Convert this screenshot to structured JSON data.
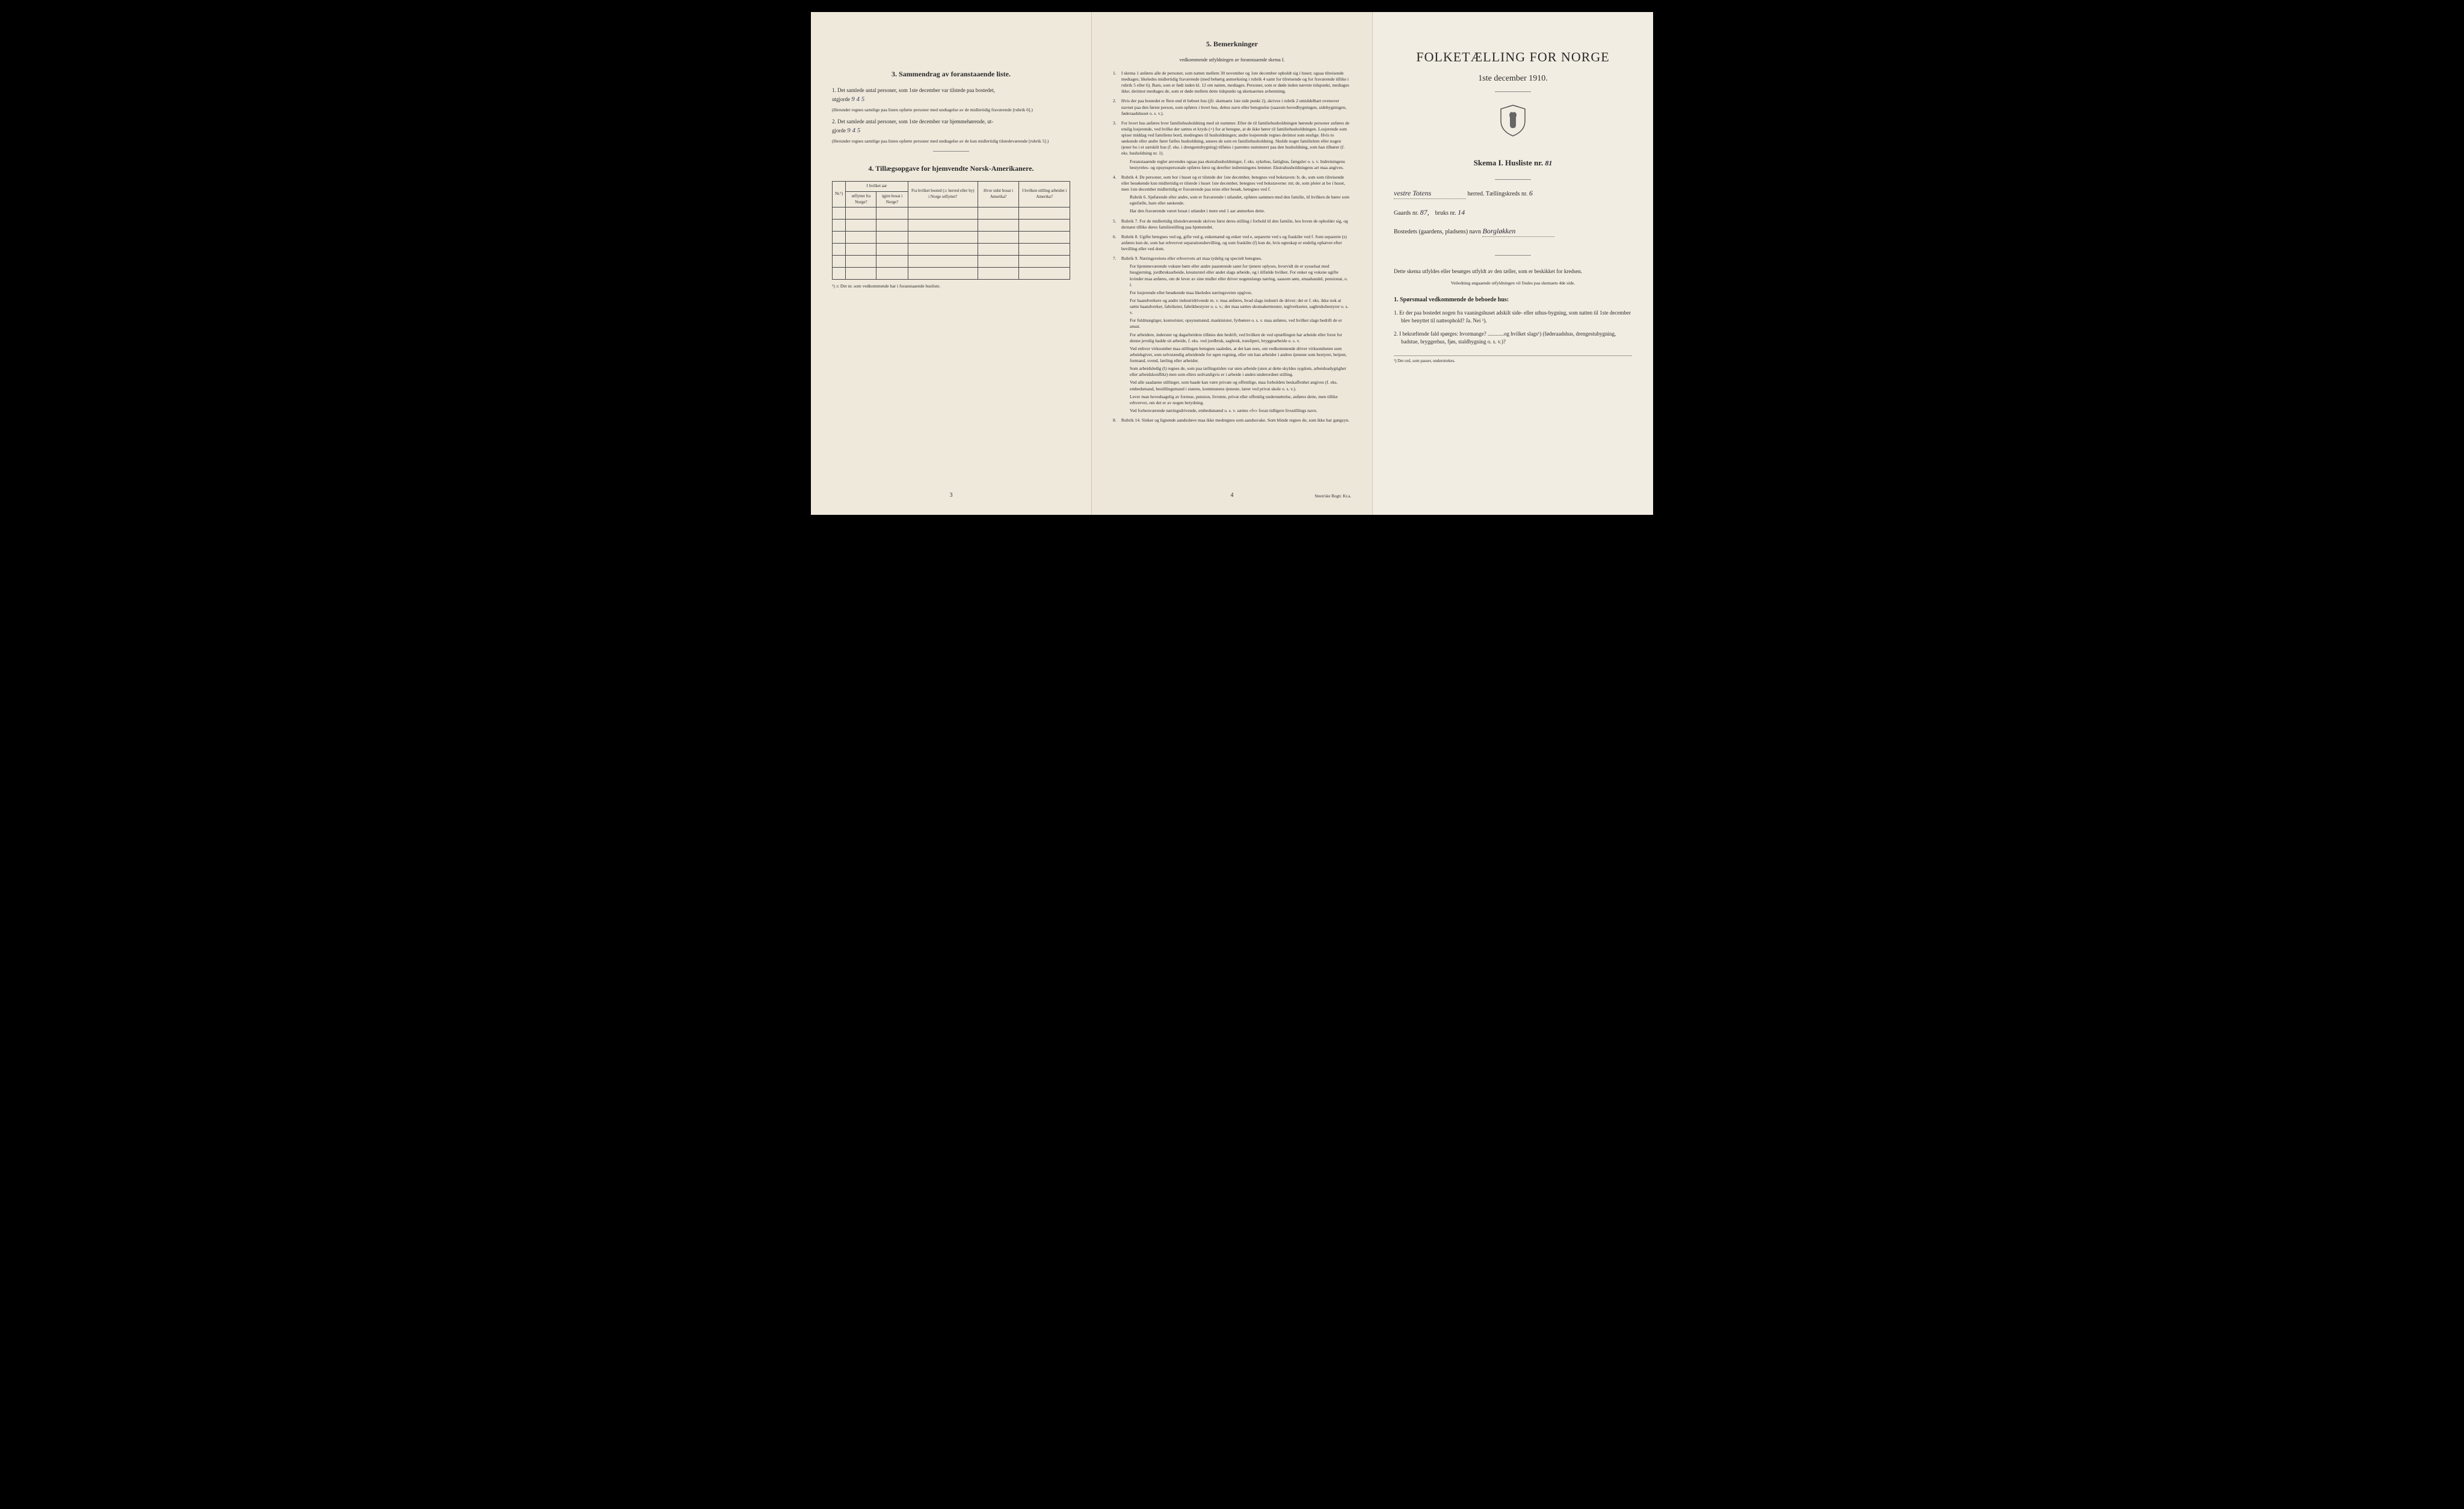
{
  "page1": {
    "section3_title": "3.  Sammendrag av foranstaaende liste.",
    "item1_prefix": "1.  Det samlede antal personer, som 1ste december var tilstede paa bostedet,",
    "item1_label": "utgjorde",
    "item1_value": "9  4 5",
    "item1_note": "(Herunder regnes samtlige paa listen opførte personer med undtagelse av de midlertidig fraværende [rubrik 6].)",
    "item2_prefix": "2.  Det samlede antal personer, som 1ste december var hjemmehørende, ut-",
    "item2_label": "gjorde",
    "item2_value": "9 4  5",
    "item2_note": "(Herunder regnes samtlige paa listen opførte personer med undtagelse av de kun midlertidig tilstedeværende [rubrik 5].)",
    "section4_title": "4.  Tillægsopgave for hjemvendte Norsk-Amerikanere.",
    "table_headers": {
      "col0": "Nr.¹)",
      "col1_top": "I hvilket aar",
      "col1a": "utflyttet fra Norge?",
      "col1b": "igjen bosat i Norge?",
      "col2": "Fra hvilket bosted (ɔ: herred eller by) i Norge utflyttet?",
      "col3": "Hvor sidst bosat i Amerika?",
      "col4": "I hvilken stilling arbeidet i Amerika?"
    },
    "table_footnote": "¹) ɔ: Det nr. som vedkommende har i foranstaaende husliste.",
    "page_num": "3"
  },
  "page2": {
    "section5_title": "5.  Bemerkninger",
    "section5_subtitle": "vedkommende utfyldningen av foranstaaende skema I.",
    "remarks": [
      {
        "num": "1.",
        "text": "I skema 1 anføres alle de personer, som natten mellem 30 november og 1ste december opholdt sig i huset; ogsaa tilreisende medtages; likeledes midlertidig fraværende (med behørig anmerkning i rubrik 4 samt for tilreisende og for fraværende tillike i rubrik 5 eller 6). Barn, som er født inden kl. 12 om natten, medtages. Personer, som er døde inden nævnte tidspunkt, medtages ikke; derimot medtages de, som er døde mellem dette tidspunkt og skemaernes avhentning."
      },
      {
        "num": "2.",
        "text": "Hvis der paa bostedet er flere end ét beboet hus (jfr. skemaets 1ste side punkt 2), skrives i rubrik 2 umiddelbart ovenover navnet paa den første person, som opføres i hvert hus, dettes navn eller betegnelse (saasom hovedbygningen, sidebygningen, føderaadshuset o. s. v.)."
      },
      {
        "num": "3.",
        "text": "For hvert hus anføres hver familiehusholdning med sit nummer. Efter de til familiehusholdningen hørende personer anføres de enslig losjerende, ved hvilke der sættes et kryds (×) for at betegne, at de ikke hører til familiehusholdningen. Losjerende som spiser middag ved familiens bord, medregnes til husholdningen; andre losjerende regnes derimot som enslige. Hvis to søskende eller andre fører fælles husholdning, ansees de som en familiehusholdning. Skulde noget familielem eller nogen tjener bo i et særskilt hus (f. eks. i drengestubygning) tilføies i parentes nummeret paa den husholdning, som han tilhører (f. eks. husholdning nr. 1).",
        "sub": "Foranstaaende regler anvendes ogsaa paa ekstrahusholdninger, f. eks. sykehus, fattighus, fængsler o. s. v. Indretningens bestyreles- og opsynspersonale opføres først og derefter indretningens lemmer. Ekstrahusholdningens art maa angives."
      },
      {
        "num": "4.",
        "text": "Rubrik 4. De personer, som bor i huset og er tilstede der 1ste december, betegnes ved bokstaven: b; de, som som tilreisende eller besøkende kun midlertidig er tilstede i huset 1ste december, betegnes ved bokstaverne: mt; de, som pleier at bo i huset, men 1ste december midlertidig er fraværende paa reise eller besøk, betegnes ved f.",
        "sub": "Rubrik 6. Sjøfarende eller andre, som er fraværende i utlandet, opføres sammen med den familie, til hvilken de hører som egtefælle, barn eller søskende.\nHar den fraværende været bosat i utlandet i mere end 1 aar anmerkes dette."
      },
      {
        "num": "5.",
        "text": "Rubrik 7. For de midlertidig tilstedeværende skrives først deres stilling i forhold til den familie, hos hvem de opholder sig, og dernæst tillike deres familiestilling paa hjemstedet."
      },
      {
        "num": "6.",
        "text": "Rubrik 8. Ugifte betegnes ved ug, gifte ved g, enkemænd og enker ved e, separerte ved s og fraskilte ved f. Som separerte (s) anføres kun de, som har erhvervet separationsbevilling, og som fraskilte (f) kun de, hvis egteskap er endelig ophævet efter bevilling eller ved dom."
      },
      {
        "num": "7.",
        "text": "Rubrik 9. Næringsveiens eller erhvervets art maa tydelig og specielt betegnes.",
        "sub": "For hjemmeværende voksne børn eller andre paarørende samt for tjenere oplyses, hvorvidt de er sysselsat med husgjerning, jordbruksarbeide, kreaturstel eller andet slags arbeide, og i tilfælde hvilket. For enker og voksne ugifte kvinder maa anføres, om de lever av sine midler eller driver nogenslangs næring, saasom søm, smaahandel, pensionat, o. l.\nFor losjerende eller besøkende maa likeledes næringsveien opgives.\nFor haandverkere og andre industridrivende m. v. maa anføres, hvad slags industri de driver; det er f. eks. ikke nok at sætte haandverker, fabrikeier, fabrikbestyrer o. s. v.; der maa sættes skomakermester, teglverkseier, sagbruksbestyrer o. s. v.\nFor fuldmægtiger, kontorister, opsynsmænd, maskinister, fyrbøtere o. s. v. maa anføres, ved hvilket slags bedrift de er ansat.\nFor arbeidere, inderster og dagarbeidere tilføies den bedrift, ved hvilken de ved optællingen har arbeide eller forut for denne jevnlig hadde sit arbeide, f. eks. ved jordbruk, sagbruk, træsliperi, bryggearbeide o. s. v.\nVed enhver virksomhet maa stillingen betegnes saaledes, at det kan sees, om vedkommende driver virksomheten som arbeidsgiver, som selvstændig arbeidende for egen regning, eller om han arbeider i andres tjeneste som bestyrer, betjent, formand, svend, lærling eller arbeider.\nSom arbeidsledig (l) regnes de, som paa tællingstiden var uten arbeide (uten at dette skyldes sygdom, arbeidsudygtighet eller arbeidskonflikt) men som ellers sedvanligvis er i arbeide i anden underordnet stilling.\nVed alle saadanne stillinger, som baade kan være private og offentlige, maa forholdets beskaffenhet angives (f. eks. embedsmand, bestillingsmand i statens, kommunens tjeneste, lærer ved privat skole o. s. v.).\nLever man hovedsagelig av formue, pension, livrente, privat eller offentlig understøttelse, anføres dette, men tillike erhvervet, om det er av nogen betydning.\nVed forhenværende næringsdrivende, embedsmænd o. s. v. sættes «fv» foran tidligere livsstillings navn."
      },
      {
        "num": "8.",
        "text": "Rubrik 14. Sinker og lignende aandssløve maa ikke medregnes som aandssvake.\nSom blinde regnes de, som ikke har gangsyn."
      }
    ],
    "page_num": "4",
    "printer": "Steen'ske Bogtr.  Kr.a."
  },
  "page3": {
    "main_title": "FOLKETÆLLING FOR NORGE",
    "main_date": "1ste december 1910.",
    "skema_label": "Skema I.  Husliste nr.",
    "husliste_nr": "81",
    "herred_value": "vestre Totens",
    "herred_label": "herred.  Tællingskreds nr.",
    "kreds_nr": "6",
    "gaards_label": "Gaards nr.",
    "gaards_nr": "87,",
    "bruks_label": "bruks nr.",
    "bruks_nr": "14",
    "bosted_label": "Bostedets (gaardens, pladsens) navn",
    "bosted_value": "Borgløkken",
    "instruction": "Dette skema utfyldes eller besørges utfyldt av den tæller, som er beskikket for kredsen.",
    "small_instruction": "Veiledning angaaende utfyldningen vil findes paa skemaets 4de side.",
    "q_heading": "1. Spørsmaal vedkommende de beboede hus:",
    "q1": "1.  Er der paa bostedet nogen fra vaaningshuset adskilt side- eller uthus-bygning, som natten til 1ste december blev benyttet til natteophold?   Ja.   Nei ¹).",
    "q2": "2.  I bekræftende fald spørges: hvormange? ............og hvilket slags¹) (føderaadshus, drengestubygning, badstue, bryggerhus, fjøs, staldbygning o. s. v.)?",
    "footnote": "¹) Det ord, som passer, understrekes."
  }
}
